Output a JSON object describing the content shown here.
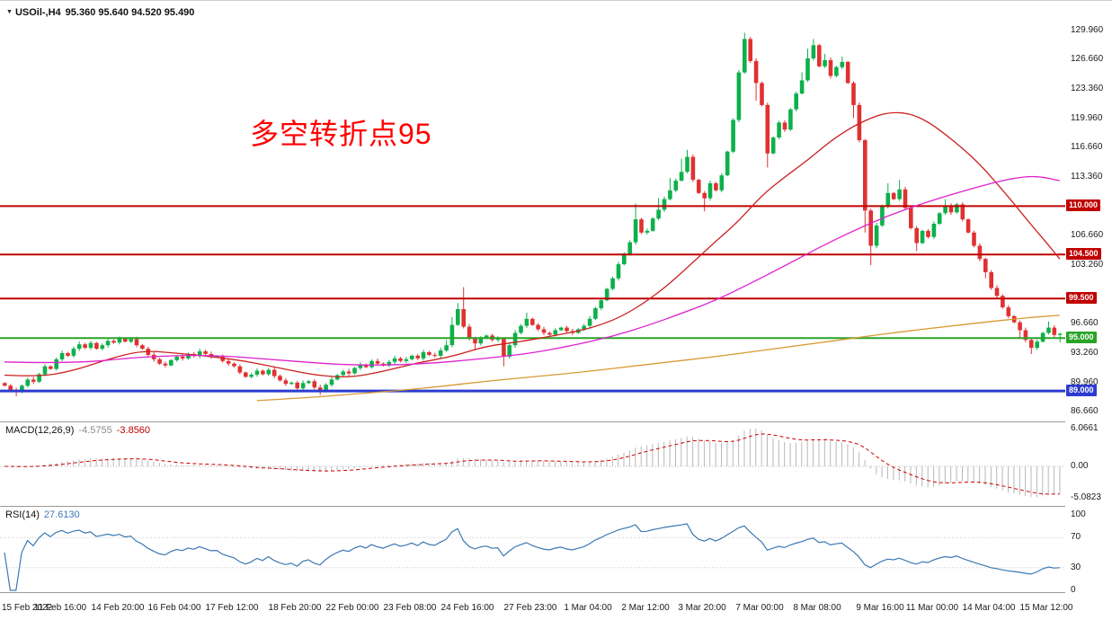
{
  "window": {
    "dropdown_arrow": "▼",
    "title_symbol": "USOil-,H4",
    "title_ohlc": "95.360 95.640 94.520 95.490"
  },
  "annotation": {
    "text": "多空转折点95",
    "color": "#ff0000"
  },
  "chart_data": {
    "type": "candlestick",
    "symbol": "USOil-",
    "timeframe": "H4",
    "ohlc_display": {
      "open": "95.360",
      "high": "95.640",
      "low": "94.520",
      "close": "95.490"
    },
    "style": {
      "up_color": "#0db04b",
      "down_color": "#e03131",
      "background": "#ffffff"
    },
    "visible_price_range": [
      86.0,
      130.4
    ],
    "price_axis_labels": [
      "129.960",
      "126.660",
      "123.360",
      "119.960",
      "116.660",
      "113.360",
      "106.660",
      "103.260",
      "96.660",
      "93.260",
      "89.960",
      "86.660"
    ],
    "hlines": [
      {
        "price": 110.0,
        "label": "110.000",
        "color": "#c00000",
        "width": 2
      },
      {
        "price": 104.5,
        "label": "104.500",
        "color": "#c00000",
        "width": 2
      },
      {
        "price": 99.5,
        "label": "99.500",
        "color": "#c00000",
        "width": 2
      },
      {
        "price": 95.0,
        "label": "95.000",
        "color": "#28a428",
        "width": 2
      },
      {
        "price": 89.0,
        "label": "89.000",
        "color": "#2c3bd0",
        "width": 3
      }
    ],
    "time_axis": [
      [
        "15 Feb 2022",
        0
      ],
      [
        "11 Feb 16:00",
        10
      ],
      [
        "14 Feb 20:00",
        20
      ],
      [
        "16 Feb 04:00",
        30
      ],
      [
        "17 Feb 12:00",
        40
      ],
      [
        "18 Feb 20:00",
        51
      ],
      [
        "22 Feb 00:00",
        61
      ],
      [
        "23 Feb 08:00",
        71
      ],
      [
        "24 Feb 16:00",
        81
      ],
      [
        "27 Feb 23:00",
        92
      ],
      [
        "1 Mar 04:00",
        102
      ],
      [
        "2 Mar 12:00",
        112
      ],
      [
        "3 Mar 20:00",
        122
      ],
      [
        "7 Mar 00:00",
        132
      ],
      [
        "8 Mar 08:00",
        142
      ],
      [
        "9 Mar 16:00",
        153
      ],
      [
        "11 Mar 00:00",
        162
      ],
      [
        "14 Mar 04:00",
        172
      ],
      [
        "15 Mar 12:00",
        182
      ]
    ],
    "candles": {
      "first_open": 89.9,
      "closes": [
        89.6,
        89.1,
        88.85,
        89.6,
        90.3,
        90.05,
        90.9,
        91.8,
        91.5,
        92.6,
        93.3,
        93.0,
        93.8,
        94.3,
        93.9,
        94.45,
        93.8,
        94.2,
        94.7,
        94.5,
        94.95,
        94.6,
        94.9,
        94.2,
        93.8,
        93.1,
        92.6,
        92.1,
        91.9,
        92.5,
        92.9,
        92.7,
        93.2,
        93.0,
        93.5,
        93.2,
        92.9,
        92.95,
        92.4,
        92.1,
        91.8,
        91.1,
        90.6,
        90.85,
        91.3,
        90.9,
        91.4,
        90.7,
        90.2,
        89.8,
        89.95,
        89.3,
        89.9,
        90.1,
        89.4,
        89.0,
        89.7,
        90.3,
        90.8,
        91.2,
        91.0,
        91.6,
        92.0,
        91.7,
        92.4,
        92.1,
        91.9,
        92.3,
        92.7,
        92.4,
        92.6,
        93.0,
        92.7,
        93.4,
        93.1,
        93.0,
        93.6,
        94.2,
        96.5,
        98.3,
        96.3,
        95.0,
        94.4,
        95.0,
        95.3,
        94.8,
        94.95,
        92.9,
        94.2,
        95.6,
        96.4,
        97.2,
        96.5,
        96.0,
        95.6,
        95.4,
        95.9,
        96.2,
        95.8,
        95.6,
        96.0,
        96.4,
        97.2,
        98.4,
        99.3,
        100.6,
        101.8,
        103.4,
        104.6,
        105.9,
        108.5,
        107.0,
        107.2,
        108.6,
        109.6,
        110.8,
        111.8,
        112.9,
        113.9,
        115.6,
        113.0,
        111.5,
        110.9,
        112.6,
        111.8,
        113.5,
        116.2,
        119.8,
        125.2,
        129.0,
        126.5,
        124.0,
        121.5,
        116.0,
        117.8,
        119.5,
        118.7,
        121.0,
        122.8,
        124.3,
        126.8,
        128.3,
        125.9,
        126.6,
        124.8,
        125.8,
        126.4,
        124.0,
        121.5,
        117.5,
        109.5,
        105.5,
        107.8,
        110.0,
        111.5,
        110.8,
        111.9,
        109.8,
        107.5,
        105.8,
        107.2,
        106.5,
        108.0,
        109.2,
        110.0,
        109.3,
        110.2,
        108.5,
        107.0,
        105.5,
        104.0,
        102.5,
        100.7,
        99.8,
        98.5,
        97.5,
        96.8,
        95.9,
        94.8,
        93.9,
        94.6,
        95.6,
        96.2,
        95.36,
        95.49
      ],
      "wick_overrides": {
        "2": [
          null,
          88.4
        ],
        "55": [
          null,
          88.55
        ],
        "77": [
          94.8,
          null
        ],
        "78": [
          97.4,
          null
        ],
        "79": [
          99.0,
          null
        ],
        "80": [
          100.8,
          null
        ],
        "82": [
          null,
          93.6
        ],
        "87": [
          null,
          91.8
        ],
        "91": [
          97.9,
          null
        ],
        "110": [
          110.3,
          null
        ],
        "114": [
          110.9,
          null
        ],
        "116": [
          113.2,
          null
        ],
        "118": [
          115.4,
          null
        ],
        "119": [
          116.4,
          null
        ],
        "122": [
          null,
          109.4
        ],
        "129": [
          129.7,
          null
        ],
        "131": [
          null,
          122.0
        ],
        "133": [
          null,
          114.4
        ],
        "139": [
          125.2,
          null
        ],
        "140": [
          127.9,
          null
        ],
        "141": [
          129.0,
          null
        ],
        "143": [
          127.3,
          null
        ],
        "146": [
          127.0,
          null
        ],
        "148": [
          null,
          120.0
        ],
        "150": [
          null,
          107.0
        ],
        "151": [
          null,
          103.3
        ],
        "154": [
          112.6,
          null
        ],
        "156": [
          113.0,
          null
        ],
        "159": [
          null,
          104.9
        ],
        "164": [
          110.8,
          null
        ],
        "171": [
          null,
          101.8
        ],
        "177": [
          null,
          95.0
        ],
        "179": [
          null,
          93.2
        ],
        "182": [
          96.9,
          null
        ],
        "184": [
          95.64,
          94.52
        ]
      }
    },
    "moving_averages": [
      {
        "name": "ma-fast-red",
        "color": "#cc2020",
        "points": [
          [
            0,
            90.8
          ],
          [
            6,
            90.6
          ],
          [
            12,
            91.3
          ],
          [
            18,
            92.6
          ],
          [
            24,
            93.6
          ],
          [
            30,
            93.3
          ],
          [
            36,
            92.9
          ],
          [
            42,
            92.4
          ],
          [
            48,
            91.6
          ],
          [
            54,
            90.8
          ],
          [
            60,
            90.5
          ],
          [
            66,
            91.2
          ],
          [
            72,
            92.2
          ],
          [
            78,
            92.9
          ],
          [
            84,
            94.1
          ],
          [
            90,
            94.6
          ],
          [
            96,
            95.3
          ],
          [
            100,
            95.8
          ],
          [
            104,
            96.5
          ],
          [
            108,
            97.6
          ],
          [
            112,
            99.2
          ],
          [
            116,
            101.2
          ],
          [
            120,
            103.6
          ],
          [
            124,
            106.0
          ],
          [
            128,
            108.3
          ],
          [
            132,
            111.2
          ],
          [
            136,
            113.3
          ],
          [
            140,
            115.2
          ],
          [
            144,
            117.4
          ],
          [
            148,
            119.1
          ],
          [
            152,
            120.3
          ],
          [
            155,
            120.7
          ],
          [
            158,
            120.5
          ],
          [
            161,
            119.6
          ],
          [
            164,
            118.2
          ],
          [
            167,
            116.6
          ],
          [
            170,
            114.8
          ],
          [
            173,
            112.6
          ],
          [
            176,
            110.3
          ],
          [
            179,
            107.9
          ],
          [
            182,
            105.6
          ],
          [
            184,
            104.0
          ]
        ]
      },
      {
        "name": "ma-medium-magenta",
        "color": "#dd22cc",
        "points": [
          [
            0,
            92.3
          ],
          [
            12,
            92.1
          ],
          [
            24,
            92.9
          ],
          [
            36,
            93.1
          ],
          [
            48,
            92.5
          ],
          [
            60,
            91.9
          ],
          [
            72,
            92.0
          ],
          [
            84,
            92.7
          ],
          [
            92,
            93.3
          ],
          [
            100,
            94.3
          ],
          [
            106,
            95.2
          ],
          [
            112,
            96.4
          ],
          [
            118,
            97.8
          ],
          [
            124,
            99.3
          ],
          [
            130,
            101.2
          ],
          [
            136,
            103.2
          ],
          [
            142,
            105.3
          ],
          [
            148,
            107.2
          ],
          [
            154,
            108.9
          ],
          [
            160,
            110.3
          ],
          [
            166,
            111.5
          ],
          [
            172,
            112.6
          ],
          [
            176,
            113.2
          ],
          [
            180,
            113.45
          ],
          [
            184,
            112.9
          ]
        ]
      },
      {
        "name": "ma-slow-orange",
        "color": "#d79b33",
        "points": [
          [
            44,
            87.9
          ],
          [
            52,
            88.2
          ],
          [
            60,
            88.6
          ],
          [
            68,
            89.0
          ],
          [
            76,
            89.5
          ],
          [
            84,
            90.1
          ],
          [
            92,
            90.6
          ],
          [
            100,
            91.1
          ],
          [
            108,
            91.7
          ],
          [
            116,
            92.3
          ],
          [
            124,
            92.9
          ],
          [
            132,
            93.6
          ],
          [
            140,
            94.3
          ],
          [
            148,
            95.0
          ],
          [
            156,
            95.7
          ],
          [
            164,
            96.3
          ],
          [
            172,
            96.9
          ],
          [
            178,
            97.3
          ],
          [
            184,
            97.6
          ]
        ]
      }
    ],
    "indicators": {
      "macd": {
        "label": "MACD(12,26,9)",
        "value_main": "-4.5755",
        "value_signal": "-3.8560",
        "fast": 12,
        "slow": 26,
        "signal": 9,
        "axis_labels": [
          "6.0661",
          "0.00",
          "-5.0823"
        ],
        "hist_color": "#b8b8b8",
        "signal_color": "#cc0000"
      },
      "rsi": {
        "label": "RSI(14)",
        "value": "27.6130",
        "period": 14,
        "axis_labels": [
          "100",
          "70",
          "30",
          "0"
        ],
        "levels": [
          70,
          30
        ],
        "color": "#3c78b4"
      }
    }
  }
}
